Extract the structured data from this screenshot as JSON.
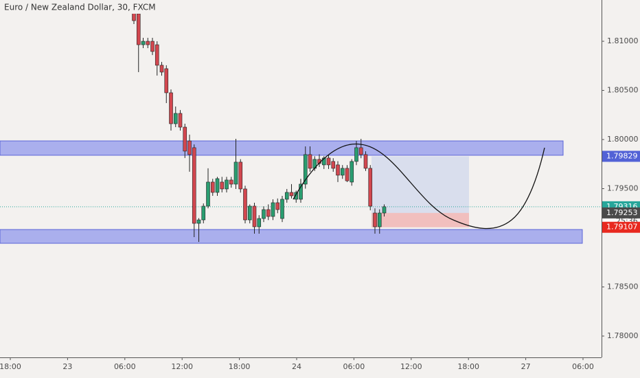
{
  "chart_data": {
    "type": "candlestick",
    "title": "Euro / New Zealand Dollar, 30, FXCM",
    "up_color": "#2a9d70",
    "down_color": "#d2474f",
    "ylim": [
      1.77783,
      1.8142
    ],
    "yticks": [
      {
        "value": 1.81,
        "label": "1.81000"
      },
      {
        "value": 1.805,
        "label": "1.80500"
      },
      {
        "value": 1.8,
        "label": "1.80000"
      },
      {
        "value": 1.795,
        "label": "1.79500"
      },
      {
        "value": 1.785,
        "label": "1.78500"
      },
      {
        "value": 1.78,
        "label": "1.78000"
      }
    ],
    "time_labels": [
      "18:00",
      "23",
      "06:00",
      "12:00",
      "18:00",
      "24",
      "06:00",
      "12:00",
      "18:00",
      "27",
      "06:00"
    ],
    "open": [
      1.8142,
      1.8128,
      1.80965,
      1.81,
      1.81,
      1.80965,
      1.80756,
      1.80721,
      1.80476,
      1.80161,
      1.80266,
      1.80126,
      1.79986,
      1.79917,
      1.79147,
      1.79182,
      1.79322,
      1.79567,
      1.79462,
      1.79567,
      1.79497,
      1.79588,
      1.79546,
      1.7977,
      1.79497,
      1.79182,
      1.79322,
      1.79112,
      1.79196,
      1.79287,
      1.79217,
      1.79357,
      1.79196,
      1.79392,
      1.79462,
      1.79392,
      1.79392,
      1.79546,
      1.79847,
      1.79707,
      1.79798,
      1.79742,
      1.79812,
      1.79777,
      1.79742,
      1.79637,
      1.79707,
      1.79567,
      1.79777,
      1.79917,
      1.79847,
      1.79707,
      1.79252,
      1.79112,
      1.79252
    ],
    "high": [
      1.8142,
      1.813,
      1.81035,
      1.81035,
      1.81035,
      1.81,
      1.8079,
      1.80756,
      1.8051,
      1.80336,
      1.803,
      1.80161,
      1.8005,
      1.7995,
      1.792,
      1.7935,
      1.79707,
      1.796,
      1.7962,
      1.7962,
      1.7962,
      1.7962,
      1.80007,
      1.798,
      1.7953,
      1.7934,
      1.79357,
      1.7923,
      1.7932,
      1.7934,
      1.79392,
      1.794,
      1.79427,
      1.79497,
      1.79546,
      1.7948,
      1.796,
      1.7993,
      1.7993,
      1.7983,
      1.7985,
      1.7983,
      1.7985,
      1.7981,
      1.7978,
      1.7974,
      1.7974,
      1.798,
      1.79986,
      1.80007,
      1.7988,
      1.7974,
      1.793,
      1.7929,
      1.7934
    ],
    "low": [
      1.81175,
      1.80686,
      1.8093,
      1.8093,
      1.8086,
      1.80651,
      1.8065,
      1.80371,
      1.80091,
      1.80126,
      1.80091,
      1.79812,
      1.79672,
      1.79007,
      1.78958,
      1.79147,
      1.793,
      1.79427,
      1.79427,
      1.79462,
      1.79462,
      1.7951,
      1.79497,
      1.7946,
      1.79147,
      1.79147,
      1.79042,
      1.79042,
      1.7916,
      1.7918,
      1.7918,
      1.7925,
      1.7916,
      1.79357,
      1.794,
      1.79357,
      1.79357,
      1.795,
      1.79672,
      1.7968,
      1.7972,
      1.797,
      1.797,
      1.79672,
      1.79567,
      1.796,
      1.79567,
      1.7953,
      1.7974,
      1.7981,
      1.7968,
      1.7928,
      1.79042,
      1.79042,
      1.79217
    ],
    "close": [
      1.8121,
      1.80965,
      1.81,
      1.80965,
      1.80896,
      1.80756,
      1.80686,
      1.80476,
      1.80161,
      1.80266,
      1.80126,
      1.79882,
      1.79847,
      1.79147,
      1.79182,
      1.79322,
      1.79567,
      1.79462,
      1.79602,
      1.79497,
      1.79588,
      1.79546,
      1.7977,
      1.79497,
      1.79182,
      1.79322,
      1.79112,
      1.79196,
      1.79287,
      1.79217,
      1.79357,
      1.79287,
      1.79392,
      1.79462,
      1.79427,
      1.79462,
      1.79546,
      1.79847,
      1.79707,
      1.79798,
      1.79756,
      1.79812,
      1.79742,
      1.79707,
      1.79637,
      1.79707,
      1.7958,
      1.79777,
      1.79917,
      1.79847,
      1.79707,
      1.79322,
      1.79112,
      1.79252,
      1.79316
    ],
    "zones": [
      {
        "from": 1.79986,
        "to": 1.7984
      },
      {
        "from": 1.79084,
        "to": 1.78944
      }
    ],
    "position": {
      "target": 1.79829,
      "entry": 1.79253,
      "stop": 1.79107
    },
    "current_price": 1.79316,
    "countdown": "25:36"
  }
}
